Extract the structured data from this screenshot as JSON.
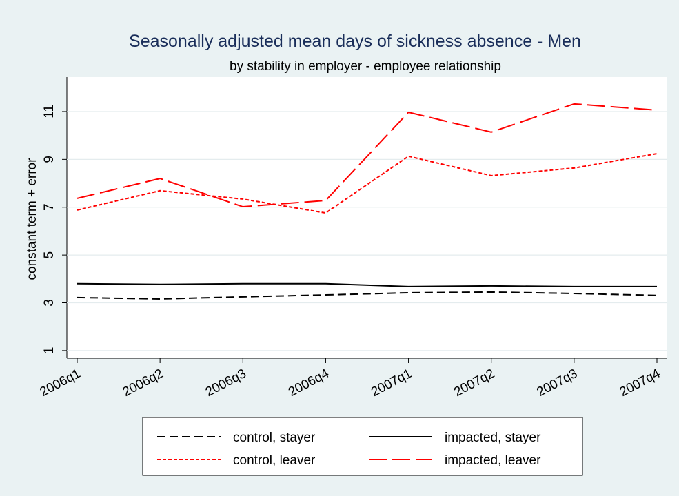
{
  "chart_data": {
    "type": "line",
    "title": "Seasonally adjusted mean days of sickness absence - Men",
    "subtitle": "by stability in employer - employee relationship",
    "y_label": "constant term + error",
    "categories": [
      "2006q1",
      "2006q2",
      "2006q3",
      "2006q4",
      "2007q1",
      "2007q2",
      "2007q3",
      "2007q4"
    ],
    "series": [
      {
        "name": "control, stayer",
        "color": "#000000",
        "style": "dash",
        "values": [
          3.22,
          3.16,
          3.25,
          3.33,
          3.42,
          3.45,
          3.39,
          3.31
        ]
      },
      {
        "name": "impacted, stayer",
        "color": "#000000",
        "style": "solid",
        "values": [
          3.8,
          3.77,
          3.8,
          3.8,
          3.68,
          3.71,
          3.68,
          3.68
        ]
      },
      {
        "name": "control, leaver",
        "color": "#ff0000",
        "style": "shortdash",
        "values": [
          6.88,
          7.69,
          7.34,
          6.76,
          9.13,
          8.32,
          8.64,
          9.24
        ]
      },
      {
        "name": "impacted, leaver",
        "color": "#ff0000",
        "style": "longdash",
        "values": [
          7.37,
          8.2,
          7.02,
          7.28,
          10.97,
          10.14,
          11.32,
          11.06
        ]
      }
    ],
    "ylim": [
      0.68,
      12.44
    ],
    "yticks": [
      1,
      3,
      5,
      7,
      9,
      11
    ],
    "grid": true
  }
}
